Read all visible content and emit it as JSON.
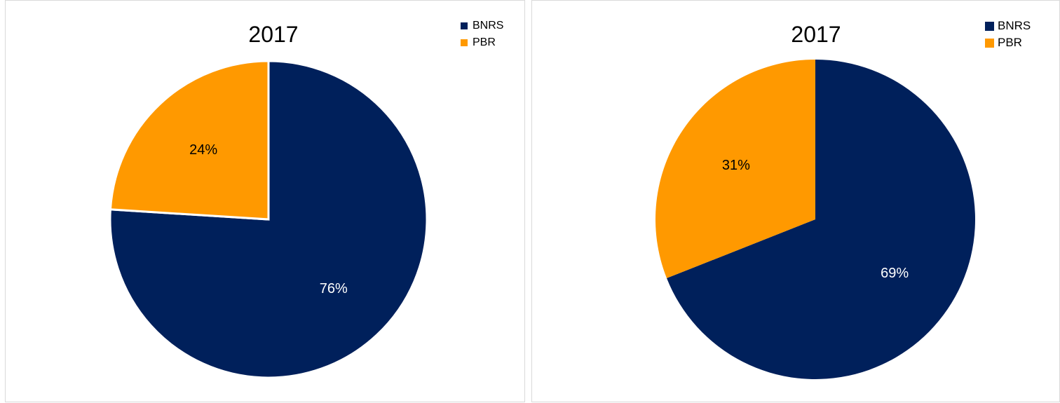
{
  "chart_data": [
    {
      "type": "pie",
      "title": "2017",
      "categories": [
        "BNRS",
        "PBR"
      ],
      "values": [
        76,
        24
      ],
      "data_labels": [
        "76%",
        "24%"
      ],
      "colors": [
        "#00205b",
        "#ff9900"
      ],
      "label_colors": [
        "#ffffff",
        "#000000"
      ],
      "legend": [
        {
          "label": "BNRS",
          "color": "#00205b"
        },
        {
          "label": "PBR",
          "color": "#ff9900"
        }
      ],
      "legend_position": "top-right"
    },
    {
      "type": "pie",
      "title": "2017",
      "categories": [
        "BNRS",
        "PBR"
      ],
      "values": [
        69,
        31
      ],
      "data_labels": [
        "69%",
        "31%"
      ],
      "colors": [
        "#00205b",
        "#ff9900"
      ],
      "label_colors": [
        "#ffffff",
        "#000000"
      ],
      "legend": [
        {
          "label": "BNRS",
          "color": "#00205b"
        },
        {
          "label": "PBR",
          "color": "#ff9900"
        }
      ],
      "legend_position": "top-right"
    }
  ]
}
